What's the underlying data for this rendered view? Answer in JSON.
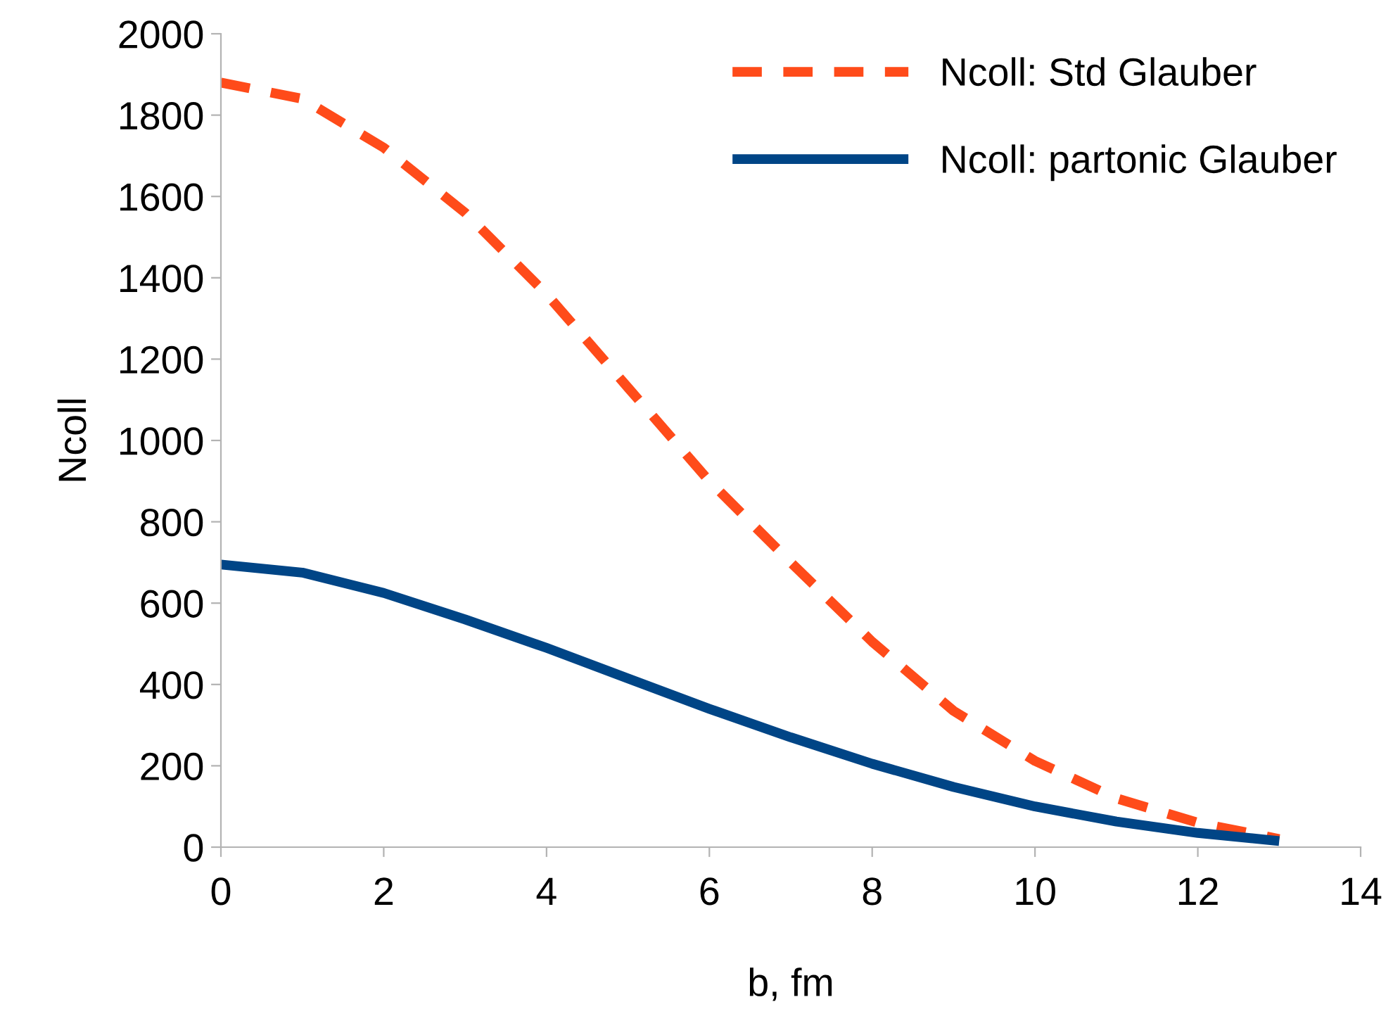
{
  "chart_data": {
    "type": "line",
    "xlabel": "b, fm",
    "ylabel": "Ncoll",
    "x": [
      0,
      1,
      2,
      3,
      4,
      5,
      6,
      7,
      8,
      9,
      10,
      11,
      12,
      13
    ],
    "series": [
      {
        "name": "Ncoll: Std Glauber",
        "color": "#ff4b1a",
        "line_style": "dashed",
        "values": [
          1880,
          1840,
          1720,
          1560,
          1360,
          1130,
          900,
          700,
          505,
          335,
          212,
          120,
          60,
          20
        ]
      },
      {
        "name": "Ncoll: partonic Glauber",
        "color": "#004586",
        "line_style": "solid",
        "values": [
          695,
          675,
          625,
          560,
          490,
          415,
          340,
          270,
          205,
          148,
          100,
          63,
          35,
          15
        ]
      }
    ],
    "xlim": [
      0,
      14
    ],
    "xticks": [
      0,
      2,
      4,
      6,
      8,
      10,
      12,
      14
    ],
    "ylim": [
      0,
      2000
    ],
    "yticks": [
      0,
      200,
      400,
      600,
      800,
      1000,
      1200,
      1400,
      1600,
      1800,
      2000
    ],
    "grid": false,
    "legend": "top right",
    "marker": "none"
  }
}
